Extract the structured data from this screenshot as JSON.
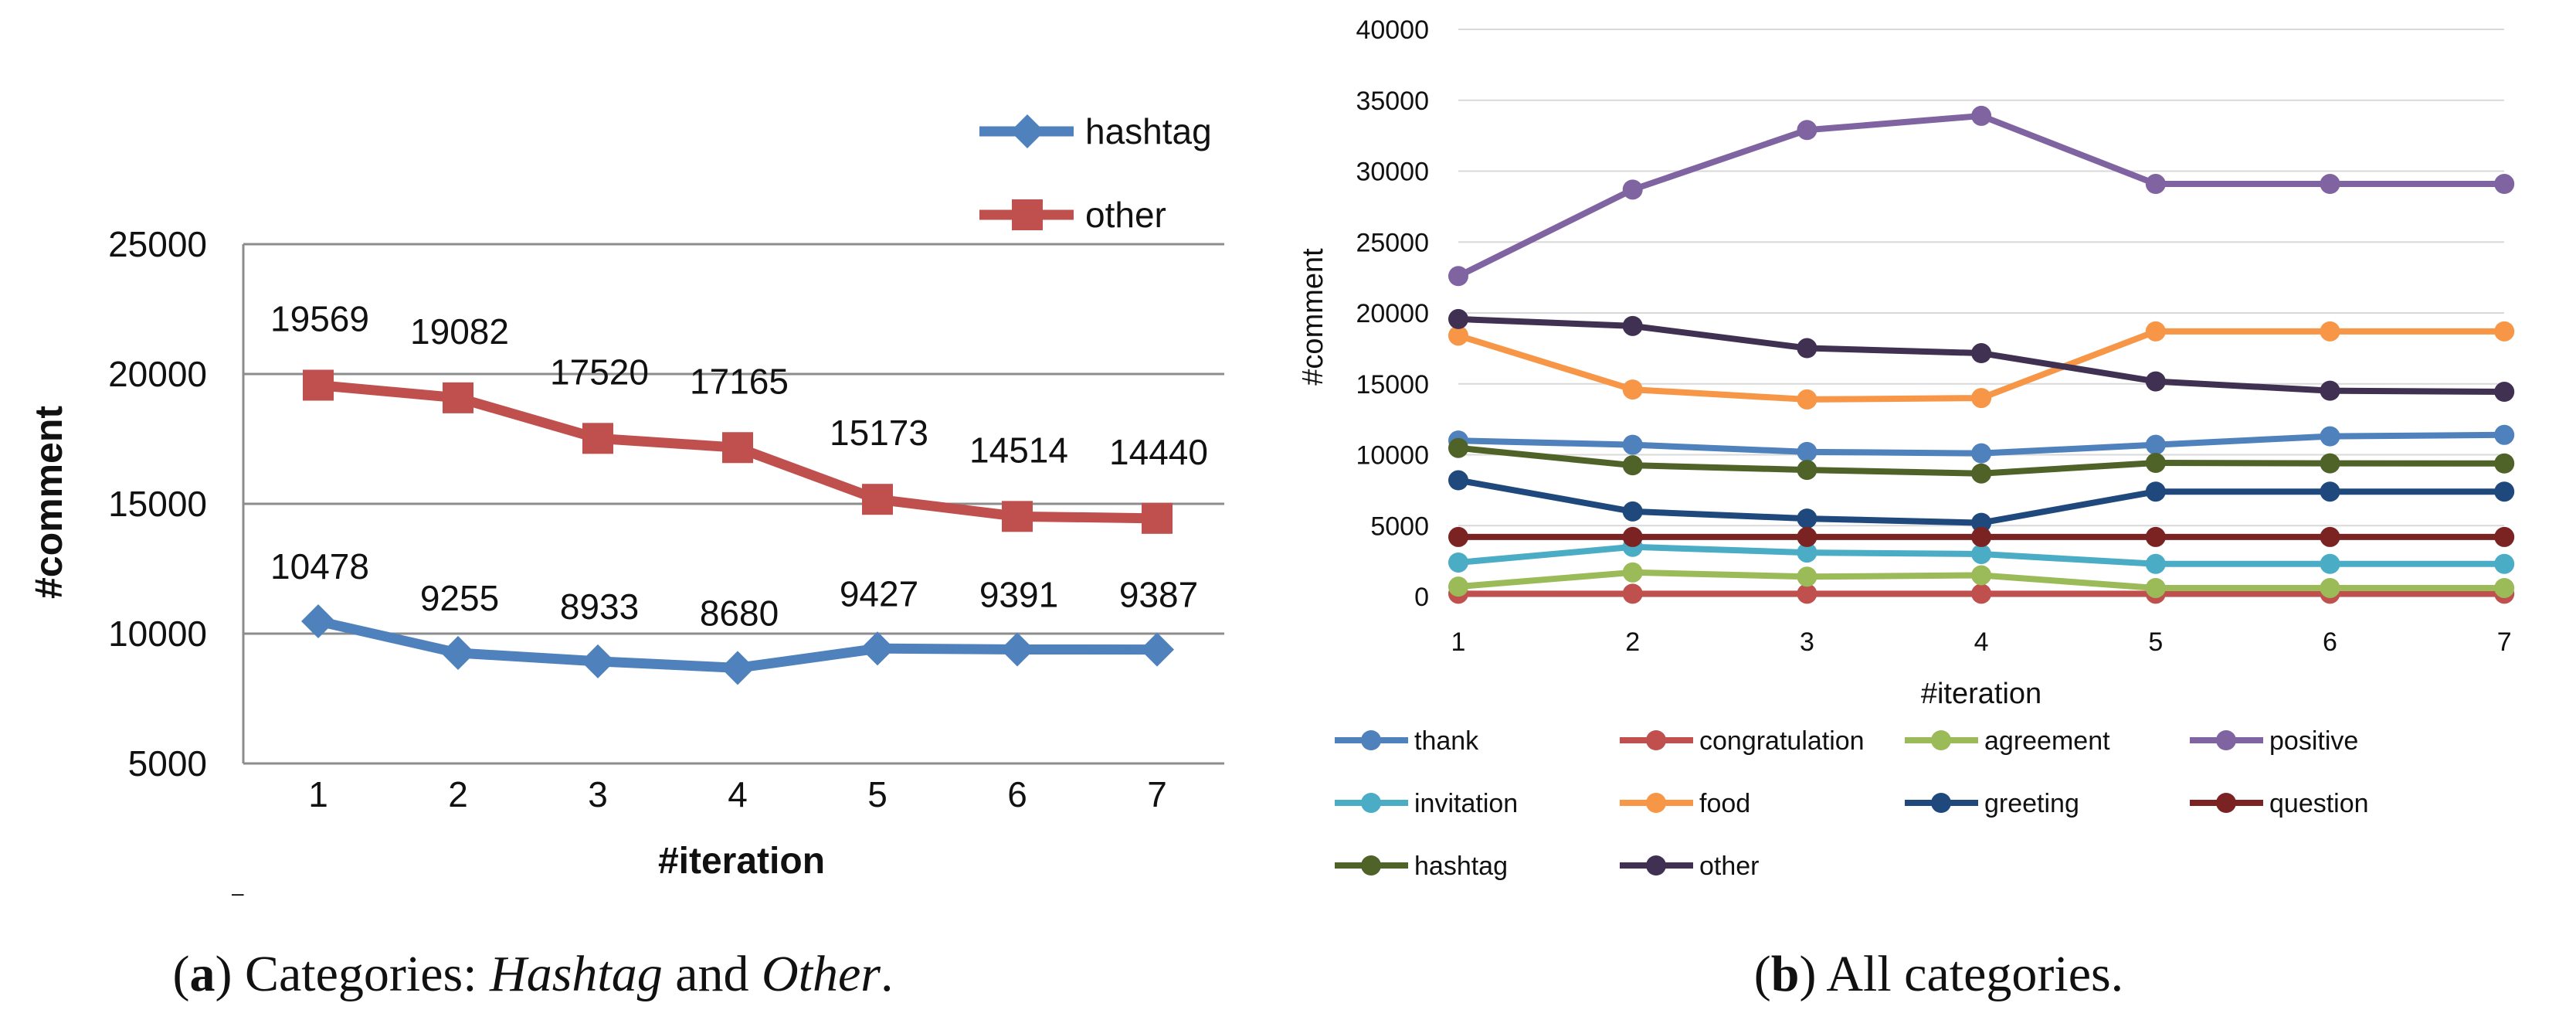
{
  "chart_data": [
    {
      "type": "line",
      "panel": "a",
      "x": [
        1,
        2,
        3,
        4,
        5,
        6,
        7
      ],
      "xlabel": "#iteration",
      "ylabel": "#comment",
      "ylim": [
        5000,
        25000
      ],
      "yticks": [
        5000,
        10000,
        15000,
        20000,
        25000
      ],
      "grid": true,
      "legend": "top-right",
      "series": [
        {
          "name": "hashtag",
          "color": "#4F81BD",
          "marker": "diamond",
          "values": [
            10478,
            9255,
            8933,
            8680,
            9427,
            9391,
            9387
          ],
          "labels": [
            "10478",
            "9255",
            "8933",
            "8680",
            "9427",
            "9391",
            "9387"
          ]
        },
        {
          "name": "other",
          "color": "#C0504D",
          "marker": "square",
          "values": [
            19569,
            19082,
            17520,
            17165,
            15173,
            14514,
            14440
          ],
          "labels": [
            "19569",
            "19082",
            "17520",
            "17165",
            "15173",
            "14514",
            "14440"
          ]
        }
      ],
      "caption": {
        "label": "a",
        "text_prefix": "Categories: ",
        "em1": "Hashtag",
        "mid": " and ",
        "em2": "Other",
        "end": "."
      },
      "footnote_mark": "–"
    },
    {
      "type": "line",
      "panel": "b",
      "x": [
        1,
        2,
        3,
        4,
        5,
        6,
        7
      ],
      "xlabel": "#iteration",
      "ylabel": "#comment",
      "ylim": [
        0,
        40000
      ],
      "yticks": [
        0,
        5000,
        10000,
        15000,
        20000,
        25000,
        30000,
        35000,
        40000
      ],
      "grid": true,
      "legend": "bottom",
      "series": [
        {
          "name": "thank",
          "color": "#4F81BD",
          "values": [
            11000,
            10700,
            10200,
            10100,
            10700,
            11300,
            11400
          ]
        },
        {
          "name": "congratulation",
          "color": "#C0504D",
          "values": [
            200,
            200,
            200,
            200,
            200,
            200,
            200
          ]
        },
        {
          "name": "agreement",
          "color": "#9BBB59",
          "values": [
            700,
            1700,
            1400,
            1500,
            600,
            600,
            600
          ]
        },
        {
          "name": "positive",
          "color": "#8064A2",
          "values": [
            22600,
            28700,
            32900,
            33900,
            29100,
            29100,
            29100
          ]
        },
        {
          "name": "invitation",
          "color": "#4BACC6",
          "values": [
            2400,
            3500,
            3100,
            3000,
            2300,
            2300,
            2300
          ]
        },
        {
          "name": "food",
          "color": "#F79646",
          "values": [
            18400,
            14600,
            13900,
            14000,
            18700,
            18700,
            18700
          ]
        },
        {
          "name": "greeting",
          "color": "#1F497D",
          "values": [
            8200,
            6000,
            5500,
            5200,
            7400,
            7400,
            7400
          ]
        },
        {
          "name": "question",
          "color": "#7B2323",
          "values": [
            4200,
            4200,
            4200,
            4200,
            4200,
            4200,
            4200
          ]
        },
        {
          "name": "hashtag",
          "color": "#4F6228",
          "values": [
            10478,
            9255,
            8933,
            8680,
            9427,
            9391,
            9387
          ]
        },
        {
          "name": "other",
          "color": "#403152",
          "values": [
            19569,
            19082,
            17520,
            17165,
            15173,
            14514,
            14440
          ]
        }
      ],
      "caption": {
        "label": "b",
        "text": " All categories."
      }
    }
  ]
}
